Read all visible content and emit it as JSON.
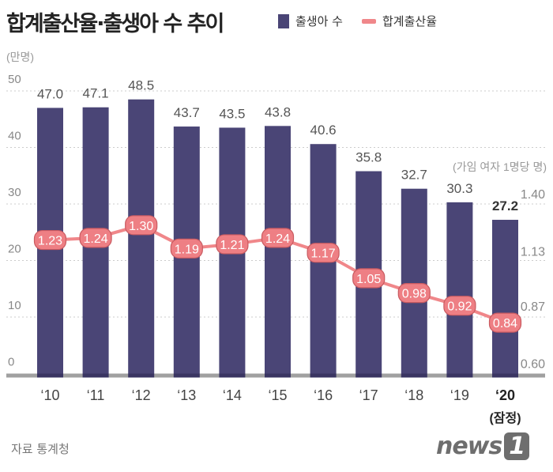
{
  "header": {
    "title": "합계출산율·출생아 수 추이"
  },
  "legend": [
    {
      "label": "출생아 수",
      "color": "#4a4576"
    },
    {
      "label": "합계출산율",
      "color": "#f0878a"
    }
  ],
  "source": "자료 통계청",
  "logo": "news1",
  "chart_data": {
    "type": "bar+line",
    "categories": [
      "'10",
      "'11",
      "'12",
      "'13",
      "'14",
      "'15",
      "'16",
      "'17",
      "'18",
      "'19",
      "'20"
    ],
    "category_note": "(잠정)",
    "series": [
      {
        "name": "출생아 수",
        "type": "bar",
        "axis": "left",
        "values": [
          47.0,
          47.1,
          48.5,
          43.7,
          43.5,
          43.8,
          40.6,
          35.8,
          32.7,
          30.3,
          27.2
        ]
      },
      {
        "name": "합계출산율",
        "type": "line",
        "axis": "right",
        "values": [
          1.23,
          1.24,
          1.3,
          1.19,
          1.21,
          1.24,
          1.17,
          1.05,
          0.98,
          0.92,
          0.84
        ]
      }
    ],
    "left_axis": {
      "unit": "(만명)",
      "ylim": [
        0,
        50
      ],
      "ticks": [
        "0",
        "10",
        "20",
        "30",
        "40",
        "50"
      ]
    },
    "right_axis": {
      "unit": "(가임 여자 1명당 명)",
      "ylim": [
        0.6,
        1.4
      ],
      "ticks": [
        "0.60",
        "0.87",
        "1.13",
        "1.40"
      ]
    },
    "grid": true,
    "legend_position": "top"
  }
}
